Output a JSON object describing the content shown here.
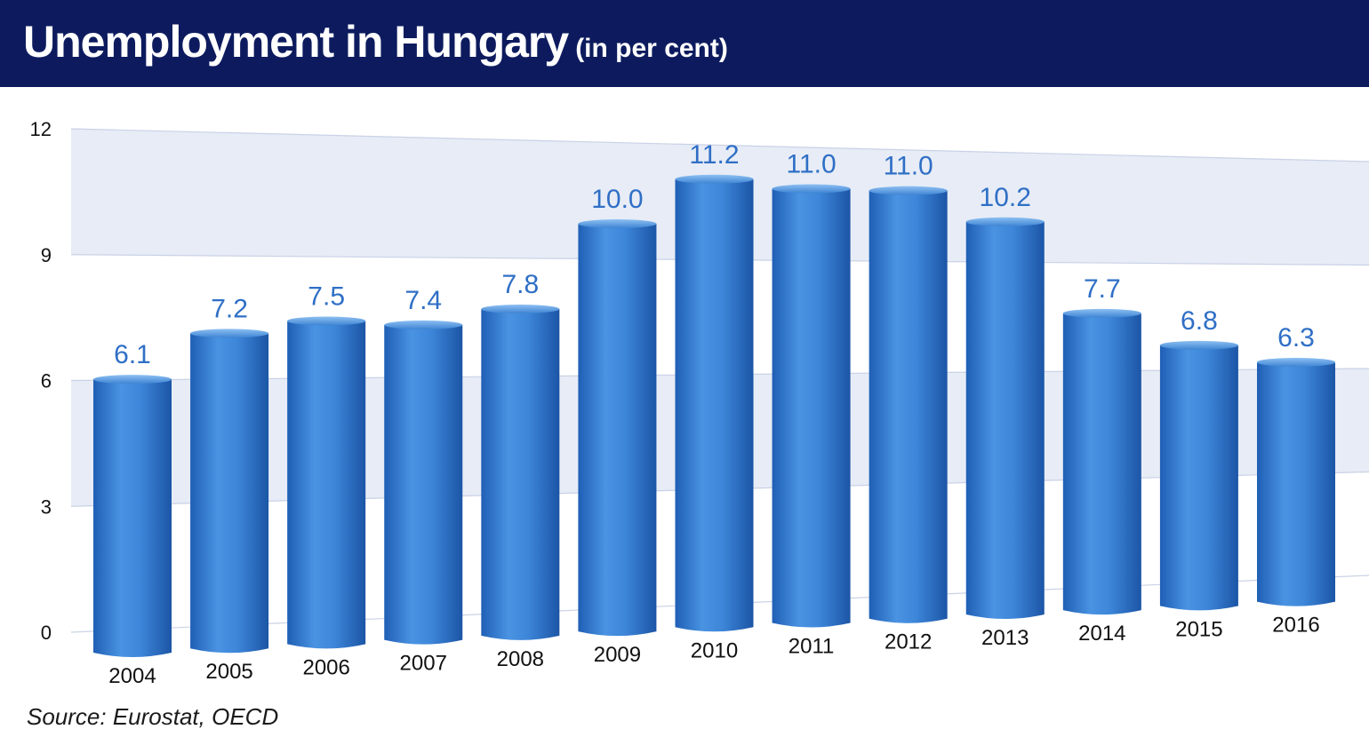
{
  "title": "Unemployment in Hungary",
  "subtitle": "(in per cent)",
  "source": "Source: Eurostat, OECD",
  "colors": {
    "title_bar": "#0d1b5e",
    "bar": "#3b82d6",
    "value_label": "#2f6fc6",
    "band": "#e7ecf6"
  },
  "chart_data": {
    "type": "bar",
    "categories": [
      "2004",
      "2005",
      "2006",
      "2007",
      "2008",
      "2009",
      "2010",
      "2011",
      "2012",
      "2013",
      "2014",
      "2015",
      "2016"
    ],
    "values": [
      6.1,
      7.2,
      7.5,
      7.4,
      7.8,
      10.0,
      11.2,
      11.0,
      11.0,
      10.2,
      7.7,
      6.8,
      6.3
    ],
    "value_labels": [
      "6.1",
      "7.2",
      "7.5",
      "7.4",
      "7.8",
      "10.0",
      "11.2",
      "11.0",
      "11.0",
      "10.2",
      "7.7",
      "6.8",
      "6.3"
    ],
    "ylim": [
      0,
      12
    ],
    "yticks": [
      "0",
      "3",
      "6",
      "9",
      "12"
    ],
    "ytick_values": [
      0,
      3,
      6,
      9,
      12
    ],
    "title": "Unemployment in Hungary",
    "xlabel": "",
    "ylabel": "",
    "grid": true,
    "legend": "none"
  }
}
